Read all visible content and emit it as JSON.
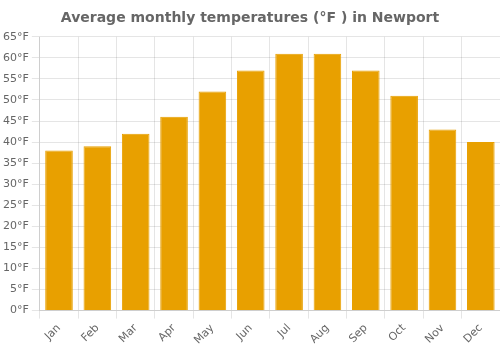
{
  "chart_data": {
    "type": "bar",
    "title": "Average monthly temperatures (°F ) in Newport",
    "categories": [
      "Jan",
      "Feb",
      "Mar",
      "Apr",
      "May",
      "Jun",
      "Jul",
      "Aug",
      "Sep",
      "Oct",
      "Nov",
      "Dec"
    ],
    "values": [
      38,
      39,
      42,
      46,
      52,
      57,
      61,
      61,
      57,
      51,
      43,
      40
    ],
    "color": "#E8A000",
    "ylim": [
      0,
      65
    ],
    "yticks": [
      {
        "value": 0,
        "label": "0°F"
      },
      {
        "value": 5,
        "label": "5°F"
      },
      {
        "value": 10,
        "label": "10°F"
      },
      {
        "value": 15,
        "label": "15°F"
      },
      {
        "value": 20,
        "label": "20°F"
      },
      {
        "value": 25,
        "label": "25°F"
      },
      {
        "value": 30,
        "label": "30°F"
      },
      {
        "value": 35,
        "label": "35°F"
      },
      {
        "value": 40,
        "label": "40°F"
      },
      {
        "value": 45,
        "label": "45°F"
      },
      {
        "value": 50,
        "label": "50°F"
      },
      {
        "value": 55,
        "label": "55°F"
      },
      {
        "value": 60,
        "label": "60°F"
      },
      {
        "value": 65,
        "label": "65°F"
      }
    ],
    "grid": true
  }
}
